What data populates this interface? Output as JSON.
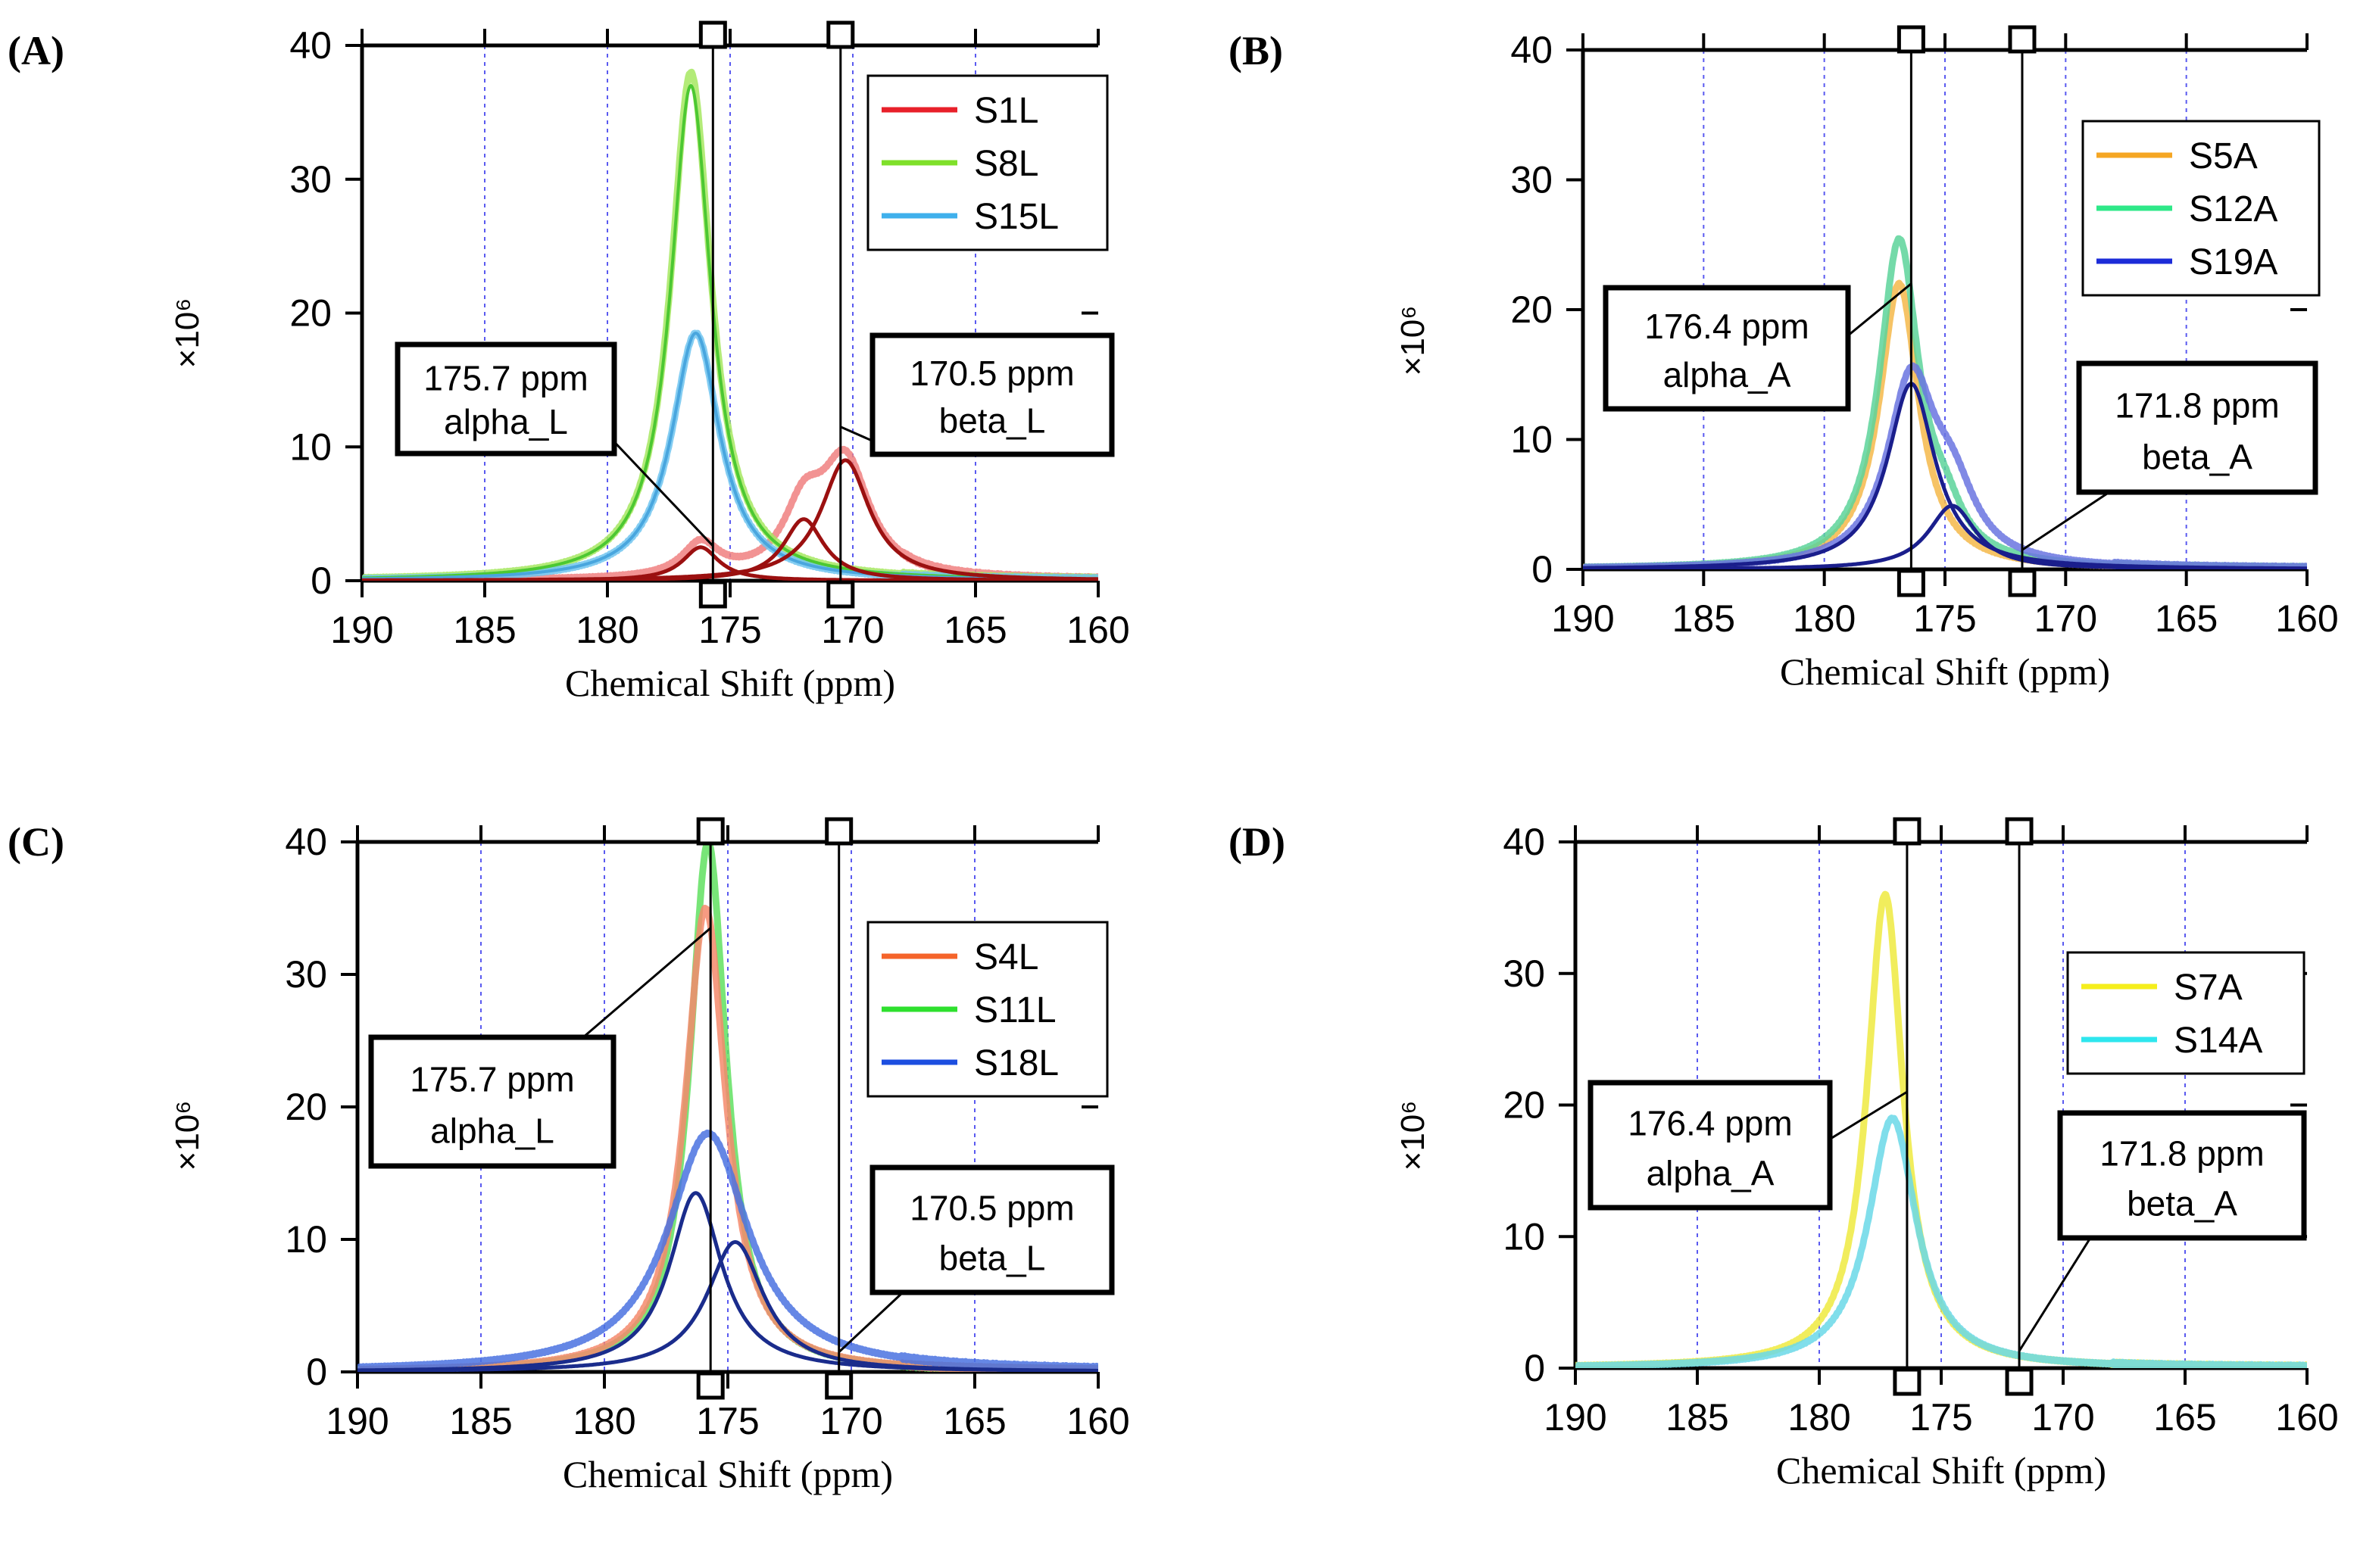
{
  "chart_data": [
    {
      "panel": "(A)",
      "type": "line",
      "xlabel": "Chemical Shift (ppm)",
      "y_unit": "×10⁶",
      "xlim": [
        190,
        160
      ],
      "ylim": [
        0,
        40
      ],
      "xticks": [
        190,
        185,
        180,
        175,
        170,
        165,
        160
      ],
      "yticks": [
        0,
        10,
        20,
        30,
        40
      ],
      "grid_x": [
        185,
        180,
        175,
        170,
        165
      ],
      "markers": [
        175.7,
        170.5
      ],
      "legend": {
        "position": "top-right",
        "items": [
          {
            "name": "S1L",
            "color": "#e8202a"
          },
          {
            "name": "S8L",
            "color": "#7fe02a"
          },
          {
            "name": "S15L",
            "color": "#3fb0ec"
          }
        ]
      },
      "series": [
        {
          "name": "S1L",
          "color": "#f08080",
          "kind": "data",
          "peaks": [
            {
              "center": 176.2,
              "height": 2.5,
              "width": 0.9
            },
            {
              "center": 172.0,
              "height": 4.6,
              "width": 1.0
            },
            {
              "center": 170.3,
              "height": 8.5,
              "width": 1.2
            }
          ]
        },
        {
          "name": "S8L",
          "color": "#a6e860",
          "kind": "data",
          "peaks": [
            {
              "center": 176.6,
              "height": 38,
              "width": 1.0
            }
          ]
        },
        {
          "name": "S15L",
          "color": "#6ec4f0",
          "kind": "data",
          "peaks": [
            {
              "center": 176.4,
              "height": 18.5,
              "width": 1.2
            }
          ]
        },
        {
          "name": "S8L fit",
          "color": "#4cc832",
          "kind": "fit",
          "peaks": [
            {
              "center": 176.6,
              "height": 37,
              "width": 1.0
            }
          ]
        },
        {
          "name": "S15L fit",
          "color": "#49a6de",
          "kind": "fit",
          "peaks": [
            {
              "center": 176.4,
              "height": 18.5,
              "width": 1.2
            }
          ]
        },
        {
          "name": "S1L component 1",
          "color": "#9b1010",
          "kind": "component",
          "peaks": [
            {
              "center": 176.2,
              "height": 2.5,
              "width": 0.9
            }
          ]
        },
        {
          "name": "S1L component 2",
          "color": "#9b1010",
          "kind": "component",
          "peaks": [
            {
              "center": 172.0,
              "height": 4.6,
              "width": 1.0
            }
          ]
        },
        {
          "name": "S1L component 3",
          "color": "#9b1010",
          "kind": "component",
          "peaks": [
            {
              "center": 170.3,
              "height": 9.0,
              "width": 1.2
            }
          ]
        }
      ],
      "annotations": [
        {
          "line1": "175.7 ppm",
          "line2": "alpha_L",
          "box": "left",
          "target": [
            175.7,
            2.6
          ]
        },
        {
          "line1": "170.5 ppm",
          "line2": "beta_L",
          "box": "right",
          "target": [
            170.5,
            11.5
          ]
        }
      ]
    },
    {
      "panel": "(B)",
      "type": "line",
      "xlabel": "Chemical Shift (ppm)",
      "y_unit": "×10⁶",
      "xlim": [
        190,
        160
      ],
      "ylim": [
        0,
        40
      ],
      "xticks": [
        190,
        185,
        180,
        175,
        170,
        165,
        160
      ],
      "yticks": [
        0,
        10,
        20,
        30,
        40
      ],
      "grid_x": [
        185,
        180,
        175,
        170,
        165
      ],
      "markers": [
        176.4,
        171.8
      ],
      "legend": {
        "position": "top-right",
        "items": [
          {
            "name": "S5A",
            "color": "#f5a623"
          },
          {
            "name": "S12A",
            "color": "#2ee888"
          },
          {
            "name": "S19A",
            "color": "#1c2cd8"
          }
        ]
      },
      "series": [
        {
          "name": "S5A",
          "color": "#f5b84a",
          "kind": "data",
          "peaks": [
            {
              "center": 176.9,
              "height": 22,
              "width": 1.0
            }
          ]
        },
        {
          "name": "S12A",
          "color": "#5cd49a",
          "kind": "data",
          "peaks": [
            {
              "center": 176.9,
              "height": 25,
              "width": 1.0
            },
            {
              "center": 175.0,
              "height": 2.5,
              "width": 0.9
            }
          ]
        },
        {
          "name": "S19A",
          "color": "#6a74e0",
          "kind": "data",
          "peaks": [
            {
              "center": 176.4,
              "height": 14,
              "width": 1.2
            },
            {
              "center": 174.7,
              "height": 4.8,
              "width": 1.2
            }
          ]
        },
        {
          "name": "S19A component 1",
          "color": "#1a1e8c",
          "kind": "component",
          "peaks": [
            {
              "center": 176.4,
              "height": 14.3,
              "width": 1.2
            }
          ]
        },
        {
          "name": "S19A component 2",
          "color": "#1a1e8c",
          "kind": "component",
          "peaks": [
            {
              "center": 174.7,
              "height": 4.9,
              "width": 1.2
            }
          ]
        }
      ],
      "annotations": [
        {
          "line1": "176.4 ppm",
          "line2": "alpha_A",
          "box": "left",
          "target": [
            176.4,
            22
          ]
        },
        {
          "line1": "171.8 ppm",
          "line2": "beta_A",
          "box": "right",
          "target": [
            171.8,
            1.5
          ]
        }
      ]
    },
    {
      "panel": "(C)",
      "type": "line",
      "xlabel": "Chemical Shift (ppm)",
      "y_unit": "×10⁶",
      "xlim": [
        190,
        160
      ],
      "ylim": [
        0,
        40
      ],
      "xticks": [
        190,
        185,
        180,
        175,
        170,
        165,
        160
      ],
      "yticks": [
        0,
        10,
        20,
        30,
        40
      ],
      "grid_x": [
        185,
        180,
        175,
        170,
        165
      ],
      "markers": [
        175.7,
        170.5
      ],
      "legend": {
        "position": "top-right",
        "items": [
          {
            "name": "S4L",
            "color": "#f5642a"
          },
          {
            "name": "S11L",
            "color": "#2ee02e"
          },
          {
            "name": "S18L",
            "color": "#1c4ee0"
          }
        ]
      },
      "series": [
        {
          "name": "S11L",
          "color": "#60e060",
          "kind": "data",
          "peaks": [
            {
              "center": 175.8,
              "height": 40,
              "width": 0.9
            }
          ]
        },
        {
          "name": "S4L",
          "color": "#f48a6c",
          "kind": "data",
          "peaks": [
            {
              "center": 175.9,
              "height": 35,
              "width": 1.0
            }
          ]
        },
        {
          "name": "S18L",
          "color": "#4a72e0",
          "kind": "data",
          "peaks": [
            {
              "center": 175.8,
              "height": 18,
              "width": 2.0
            }
          ]
        },
        {
          "name": "S18L component 1",
          "color": "#1a2c8c",
          "kind": "component",
          "peaks": [
            {
              "center": 176.3,
              "height": 13.5,
              "width": 1.3
            }
          ]
        },
        {
          "name": "S18L component 2",
          "color": "#1a2c8c",
          "kind": "component",
          "peaks": [
            {
              "center": 174.7,
              "height": 9.8,
              "width": 1.4
            }
          ]
        }
      ],
      "annotations": [
        {
          "line1": "175.7 ppm",
          "line2": "alpha_L",
          "box": "left",
          "target": [
            175.7,
            33.5
          ]
        },
        {
          "line1": "170.5 ppm",
          "line2": "beta_L",
          "box": "right",
          "target": [
            170.5,
            1.5
          ]
        }
      ]
    },
    {
      "panel": "(D)",
      "type": "line",
      "xlabel": "Chemical Shift (ppm)",
      "y_unit": "×10⁶",
      "xlim": [
        190,
        160
      ],
      "ylim": [
        0,
        40
      ],
      "xticks": [
        190,
        185,
        180,
        175,
        170,
        165,
        160
      ],
      "yticks": [
        0,
        10,
        20,
        30,
        40
      ],
      "grid_x": [
        185,
        180,
        175,
        170,
        165
      ],
      "markers": [
        176.4,
        171.8
      ],
      "legend": {
        "position": "top-right",
        "items": [
          {
            "name": "S7A",
            "color": "#f5ee1c"
          },
          {
            "name": "S14A",
            "color": "#2ee6ee"
          }
        ]
      },
      "series": [
        {
          "name": "S7A",
          "color": "#eeea40",
          "kind": "data",
          "peaks": [
            {
              "center": 177.3,
              "height": 36,
              "width": 0.9
            }
          ]
        },
        {
          "name": "S14A",
          "color": "#6ad8e8",
          "kind": "data",
          "peaks": [
            {
              "center": 177.0,
              "height": 19,
              "width": 1.2
            }
          ]
        }
      ],
      "annotations": [
        {
          "line1": "176.4 ppm",
          "line2": "alpha_A",
          "box": "left",
          "target": [
            176.4,
            21
          ]
        },
        {
          "line1": "171.8 ppm",
          "line2": "beta_A",
          "box": "right",
          "target": [
            171.8,
            1.3
          ]
        }
      ]
    }
  ]
}
